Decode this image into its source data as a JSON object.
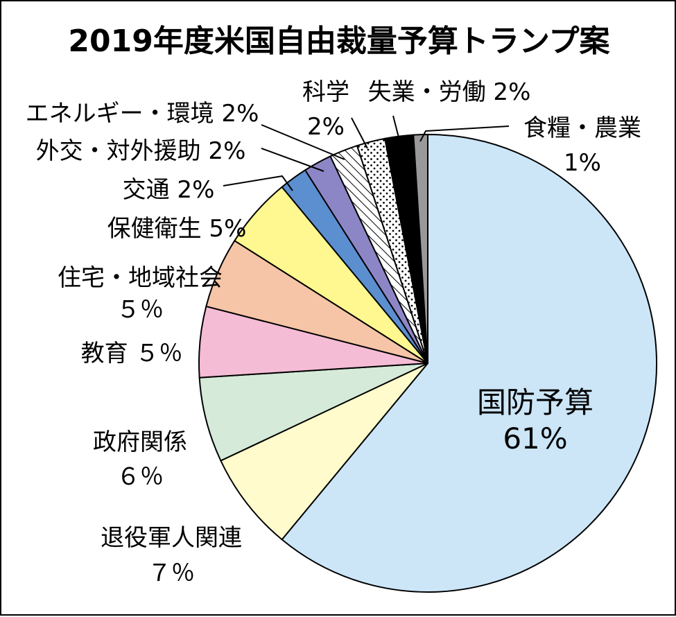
{
  "chart_data": {
    "type": "pie",
    "title": "2019年度米国自由裁量予算トランプ案",
    "start": "12 o'clock",
    "direction": "clockwise",
    "slices": [
      {
        "key": "defense",
        "name": "国防予算",
        "value": 61,
        "label_lines": [
          "国防予算",
          "61%"
        ],
        "color": "#cce6f8",
        "pattern": "solid"
      },
      {
        "key": "veterans",
        "name": "退役軍人関連",
        "value": 7,
        "label_lines": [
          "退役軍人関連",
          "７％"
        ],
        "color": "#fffbcc",
        "pattern": "solid"
      },
      {
        "key": "government",
        "name": "政府関係",
        "value": 6,
        "label_lines": [
          "政府関係",
          "６％"
        ],
        "color": "#d5ead8",
        "pattern": "solid"
      },
      {
        "key": "education",
        "name": "教育",
        "value": 5,
        "label_lines": [
          "教育 ５％"
        ],
        "color": "#f5bcd6",
        "pattern": "solid"
      },
      {
        "key": "housing",
        "name": "住宅・地域社会",
        "value": 5,
        "label_lines": [
          "住宅・地域社会",
          "５％"
        ],
        "color": "#f6c4a6",
        "pattern": "solid"
      },
      {
        "key": "health",
        "name": "保健衛生",
        "value": 5,
        "label_lines": [
          "保健衛生 5%"
        ],
        "color": "#fff890",
        "pattern": "solid"
      },
      {
        "key": "transport",
        "name": "交通",
        "value": 2,
        "label_lines": [
          "交通 2%"
        ],
        "color": "#5b8fd0",
        "pattern": "solid"
      },
      {
        "key": "foreign_aid",
        "name": "外交・対外援助",
        "value": 2,
        "label_lines": [
          "外交・対外援助 2%"
        ],
        "color": "#8d86c6",
        "pattern": "solid"
      },
      {
        "key": "energy_env",
        "name": "エネルギー・環境",
        "value": 2,
        "label_lines": [
          "エネルギー・環境 2%"
        ],
        "color": "#ffffff",
        "pattern": "hatch"
      },
      {
        "key": "science",
        "name": "科学",
        "value": 2,
        "label_lines": [
          "科学",
          "2%"
        ],
        "color": "#ffffff",
        "pattern": "dots"
      },
      {
        "key": "labor",
        "name": "失業・労働",
        "value": 2,
        "label_lines": [
          "失業・労働 2%"
        ],
        "color": "#000000",
        "pattern": "solid"
      },
      {
        "key": "food_agri",
        "name": "食糧・農業",
        "value": 1,
        "label_lines": [
          "食糧・農業",
          "1%"
        ],
        "color": "#999999",
        "pattern": "solid"
      }
    ]
  }
}
